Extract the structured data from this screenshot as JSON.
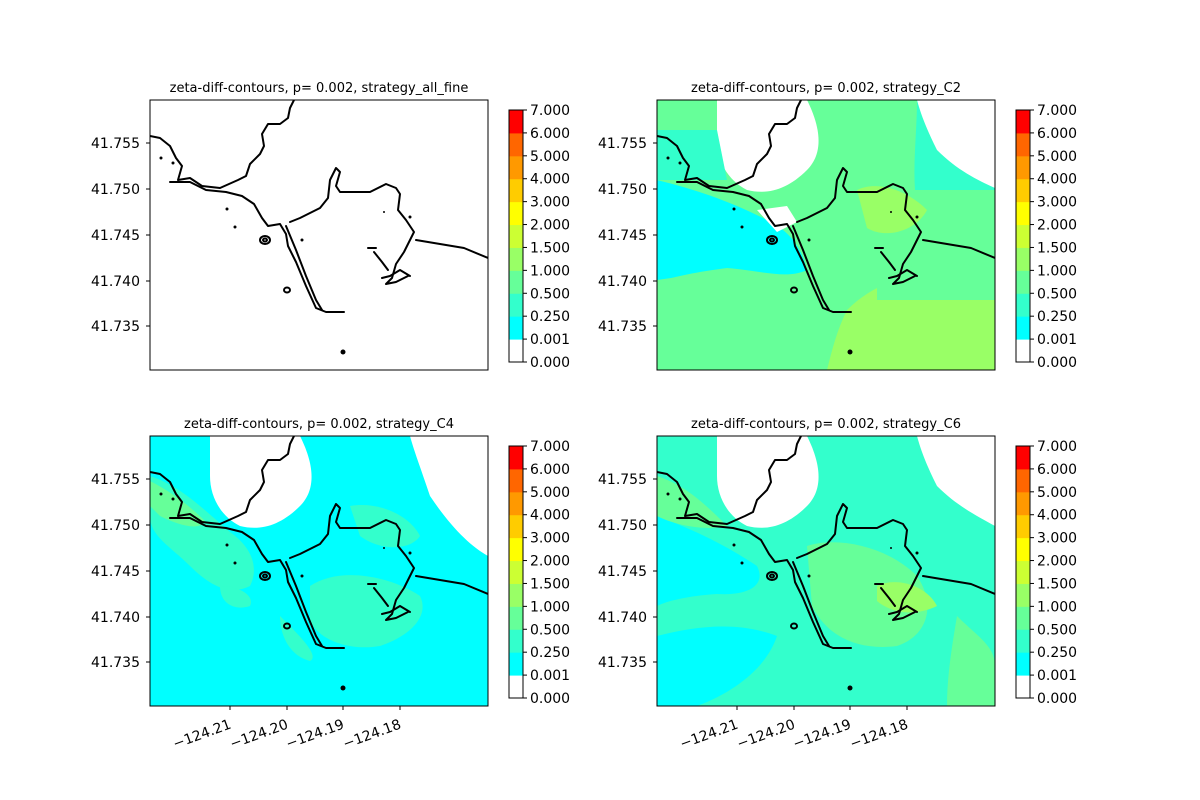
{
  "figure": {
    "background": "#ffffff"
  },
  "chart_data": {
    "type": "heatmap",
    "colorbar": {
      "levels": [
        "0.000",
        "0.001",
        "0.250",
        "0.500",
        "1.000",
        "1.500",
        "2.000",
        "3.000",
        "4.000",
        "5.000",
        "6.000",
        "7.000"
      ],
      "colors": [
        "#ffffff",
        "#00ffff",
        "#33ffcc",
        "#66ff99",
        "#99ff66",
        "#ccff33",
        "#ffff00",
        "#ffcc00",
        "#ff9900",
        "#ff6600",
        "#ff0000"
      ]
    },
    "y_ticks": [
      "41.755",
      "41.750",
      "41.745",
      "41.740",
      "41.735"
    ],
    "x_ticks": [
      "−124.21",
      "−124.20",
      "−124.19",
      "−124.18"
    ],
    "panels": [
      {
        "title": "zeta-diff-contours, p= 0.002, strategy_all_fine",
        "fill": "none"
      },
      {
        "title": "zeta-diff-contours, p= 0.002, strategy_C2",
        "fill": "c2"
      },
      {
        "title": "zeta-diff-contours, p= 0.002, strategy_C4",
        "fill": "c4"
      },
      {
        "title": "zeta-diff-contours, p= 0.002, strategy_C6",
        "fill": "c6"
      }
    ]
  }
}
